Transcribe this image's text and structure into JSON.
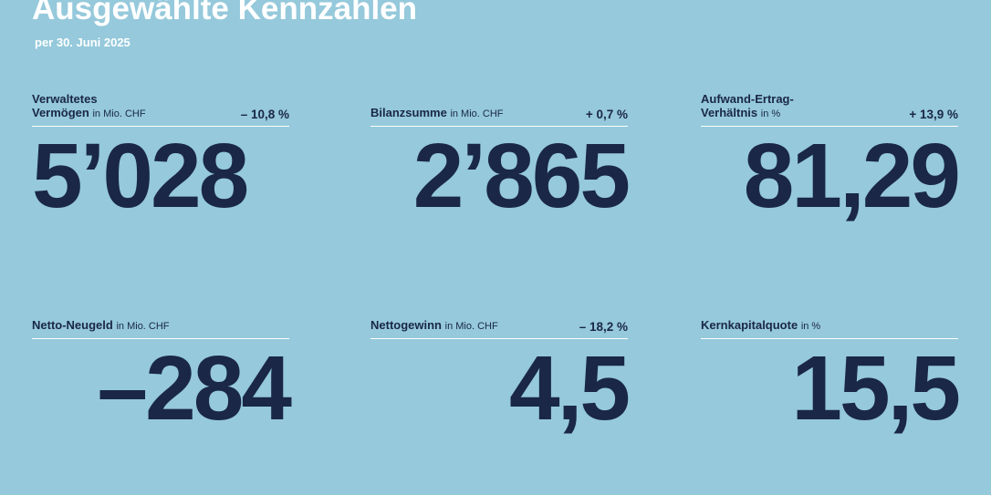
{
  "header": {
    "title": "Ausgewählte Kennzahlen",
    "subtitle": "per 30. Juni 2025"
  },
  "colors": {
    "background": "#95c9db",
    "text_dark": "#1a2746",
    "white": "#ffffff"
  },
  "kpis": [
    {
      "label_line1": "Verwaltetes",
      "label_line2": "Vermögen",
      "unit": "in Mio. CHF",
      "change": "– 10,8 %",
      "value": "5’028"
    },
    {
      "label_line1": "",
      "label_line2": "Bilanzsumme",
      "unit": "in Mio. CHF",
      "change": "+ 0,7 %",
      "value": "2’865"
    },
    {
      "label_line1": "Aufwand-Ertrag-",
      "label_line2": "Verhältnis",
      "unit": "in %",
      "change": "+ 13,9 %",
      "value": "81,29"
    },
    {
      "label_line1": "",
      "label_line2": "Netto-Neugeld",
      "unit": "in Mio. CHF",
      "change": "",
      "value": "–284"
    },
    {
      "label_line1": "",
      "label_line2": "Nettogewinn",
      "unit": "in Mio. CHF",
      "change": "– 18,2 %",
      "value": "4,5"
    },
    {
      "label_line1": "",
      "label_line2": "Kernkapitalquote",
      "unit": "in %",
      "change": "",
      "value": "15,5"
    }
  ]
}
